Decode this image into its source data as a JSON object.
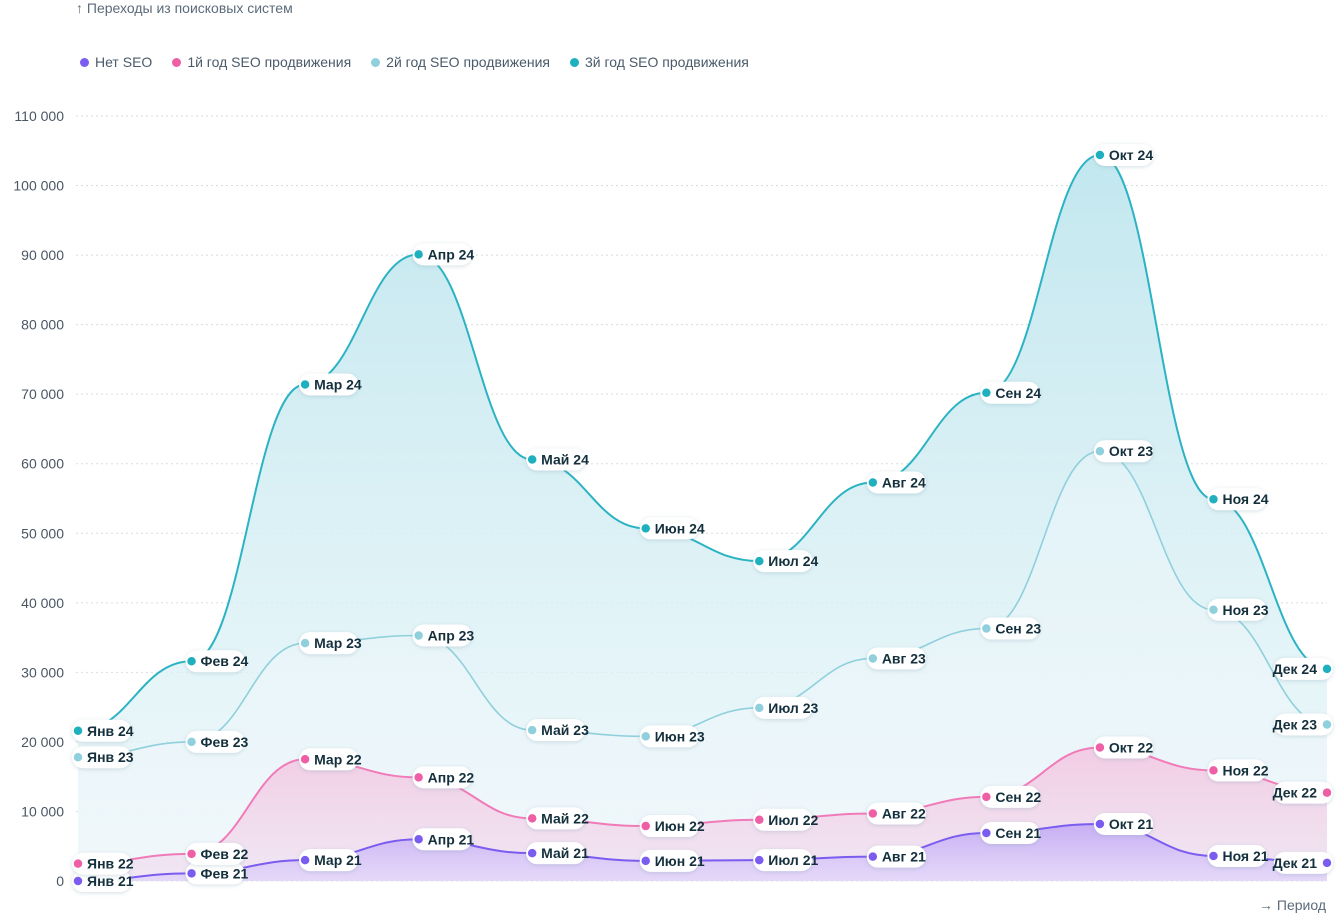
{
  "page": {
    "y_axis_title": "↑ Переходы из поисковых систем",
    "x_axis_title": "→ Период"
  },
  "chart_data": {
    "type": "area",
    "y_ticks": [
      "0",
      "10 000",
      "20 000",
      "30 000",
      "40 000",
      "50 000",
      "60 000",
      "70 000",
      "80 000",
      "90 000",
      "100 000",
      "110 000"
    ],
    "ylim": [
      0,
      110000
    ],
    "grid": true,
    "legend_position": "top-left",
    "series": [
      {
        "name": "Нет SEO",
        "color": "#7b5cf0",
        "labels": [
          "Янв 21",
          "Фев 21",
          "Мар 21",
          "Апр 21",
          "Май 21",
          "Июн 21",
          "Июл 21",
          "Авг 21",
          "Сен 21",
          "Окт 21",
          "Ноя 21",
          "Дек 21"
        ],
        "values": [
          0,
          1100,
          3000,
          6000,
          4000,
          2900,
          3000,
          3500,
          6900,
          8200,
          3600,
          2600
        ]
      },
      {
        "name": "1й год SEO продвижения",
        "color": "#ee5fa5",
        "labels": [
          "Янв 22",
          "Фев 22",
          "Мар 22",
          "Апр 22",
          "Май 22",
          "Июн 22",
          "Июл 22",
          "Авг 22",
          "Сен 22",
          "Окт 22",
          "Ноя 22",
          "Дек 22"
        ],
        "values": [
          2500,
          3900,
          17500,
          14900,
          9000,
          7900,
          8800,
          9700,
          12100,
          19200,
          15900,
          12700
        ]
      },
      {
        "name": "2й год SEO продвижения",
        "color": "#8fd0dc",
        "labels": [
          "Янв 23",
          "Фев 23",
          "Мар 23",
          "Апр 23",
          "Май 23",
          "Июн 23",
          "Июл 23",
          "Авг 23",
          "Сен 23",
          "Окт 23",
          "Ноя 23",
          "Дек 23"
        ],
        "values": [
          17800,
          20000,
          34200,
          35300,
          21700,
          20800,
          24900,
          32000,
          36300,
          61800,
          39000,
          22500
        ]
      },
      {
        "name": "3й год SEO продвижения",
        "color": "#1fb0c0",
        "labels": [
          "Янв 24",
          "Фев 24",
          "Мар 24",
          "Апр 24",
          "Май 24",
          "Июн 24",
          "Июл 24",
          "Авг 24",
          "Сен 24",
          "Окт 24",
          "Ноя 24",
          "Дек 24"
        ],
        "values": [
          21600,
          31600,
          71400,
          90100,
          60600,
          50700,
          46000,
          57300,
          70200,
          104400,
          54900,
          30500
        ]
      }
    ]
  }
}
